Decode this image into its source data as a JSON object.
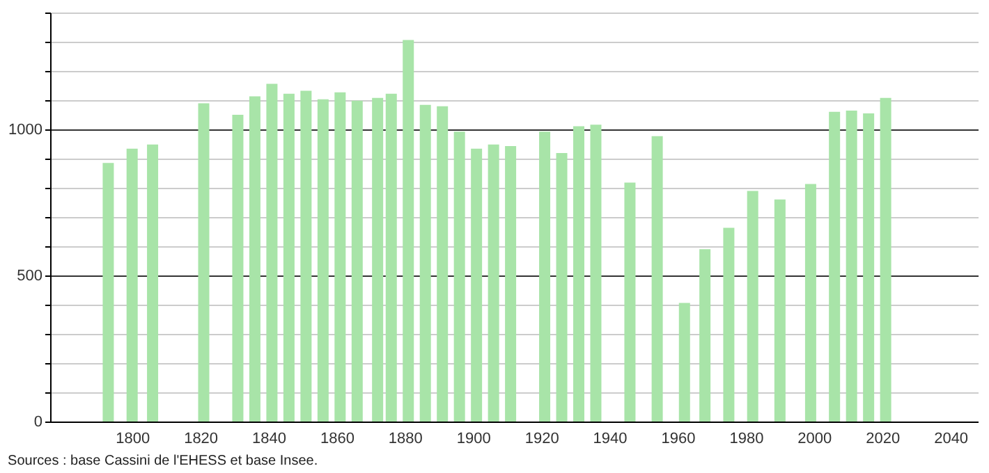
{
  "chart_data": {
    "type": "bar",
    "x": [
      1793,
      1800,
      1806,
      1821,
      1831,
      1836,
      1841,
      1846,
      1851,
      1856,
      1861,
      1866,
      1872,
      1876,
      1881,
      1886,
      1891,
      1896,
      1901,
      1906,
      1911,
      1921,
      1926,
      1931,
      1936,
      1946,
      1954,
      1962,
      1968,
      1975,
      1982,
      1990,
      1999,
      2006,
      2011,
      2016,
      2021
    ],
    "series": [
      {
        "color": "#a8e4a8",
        "values": [
          885,
          934,
          948,
          1089,
          1050,
          1113,
          1156,
          1122,
          1132,
          1103,
          1127,
          1098,
          1108,
          1122,
          1306,
          1084,
          1079,
          992,
          934,
          948,
          943,
          992,
          919,
          1011,
          1016,
          818,
          977,
          406,
          590,
          663,
          789,
          760,
          813,
          1060,
          1064,
          1055,
          1108
        ]
      }
    ],
    "xlim": [
      1778,
      2046
    ],
    "xticks": [
      1800,
      1820,
      1840,
      1860,
      1880,
      1900,
      1920,
      1940,
      1960,
      1980,
      2000,
      2020,
      2040
    ],
    "ylim": [
      0,
      1400
    ],
    "yticks": [
      0,
      {
        "value": 100,
        "label": null
      },
      {
        "value": 200,
        "label": null
      },
      {
        "value": 300,
        "label": null
      },
      {
        "value": 400,
        "label": null
      },
      500,
      {
        "value": 600,
        "label": null
      },
      {
        "value": 700,
        "label": null
      },
      {
        "value": 800,
        "label": null
      },
      {
        "value": 900,
        "label": null
      },
      1000,
      {
        "value": 1100,
        "label": null
      },
      {
        "value": 1200,
        "label": null
      },
      {
        "value": 1300,
        "label": null
      },
      {
        "value": 1400,
        "label": null
      }
    ],
    "grid": "y",
    "annotations": [
      "Sources : base Cassini de l'EHESS et base Insee."
    ]
  }
}
